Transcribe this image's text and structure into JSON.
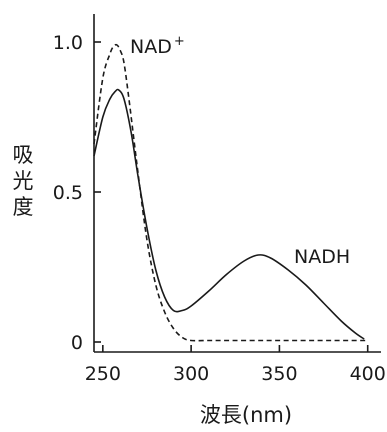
{
  "chart_data": {
    "type": "line",
    "xlabel": "波長(nm)",
    "ylabel": "吸光度",
    "xlim": [
      245,
      403
    ],
    "ylim": [
      0,
      1.0
    ],
    "x_ticks": [
      250,
      300,
      350,
      400
    ],
    "y_ticks": [
      0,
      0.5,
      1.0
    ],
    "x_tick_labels": [
      "250",
      "300",
      "350",
      "400"
    ],
    "y_tick_labels": [
      "0",
      "0.5",
      "1.0"
    ],
    "grid": false,
    "series": [
      {
        "name": "NAD",
        "name_superscript": "+",
        "style": "dashed",
        "color": "#1a1a1a",
        "x": [
          245,
          250,
          254,
          256,
          258,
          260,
          262,
          265,
          270,
          275,
          280,
          285,
          290,
          295,
          300,
          310,
          320,
          340,
          360,
          380,
          400
        ],
        "y": [
          0.66,
          0.88,
          0.96,
          0.985,
          0.99,
          0.97,
          0.93,
          0.8,
          0.56,
          0.34,
          0.19,
          0.1,
          0.045,
          0.015,
          0.005,
          0.005,
          0.005,
          0.005,
          0.005,
          0.005,
          0.005
        ]
      },
      {
        "name": "NADH",
        "style": "solid",
        "color": "#1a1a1a",
        "x": [
          245,
          250,
          254,
          257,
          259,
          262,
          266,
          270,
          275,
          280,
          285,
          290,
          295,
          300,
          310,
          320,
          330,
          338,
          345,
          355,
          365,
          375,
          385,
          393,
          398
        ],
        "y": [
          0.62,
          0.75,
          0.81,
          0.835,
          0.84,
          0.81,
          0.7,
          0.55,
          0.38,
          0.24,
          0.15,
          0.105,
          0.105,
          0.12,
          0.17,
          0.225,
          0.27,
          0.29,
          0.28,
          0.24,
          0.19,
          0.13,
          0.07,
          0.03,
          0.01
        ]
      }
    ]
  }
}
